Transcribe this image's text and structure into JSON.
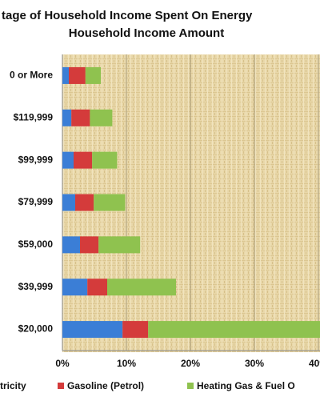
{
  "chart_data": {
    "type": "stacked-barh",
    "title": "tage of Household Income Spent On Energy",
    "subtitle": "Household Income Amount",
    "categories": [
      "0 or More",
      "$119,999",
      "$99,999",
      "$79,999",
      "$59,000",
      "$39,999",
      "$20,000"
    ],
    "series": [
      {
        "name": "tricity",
        "color": "#3b7ed6",
        "values": [
          1.0,
          1.4,
          1.75,
          2.0,
          2.75,
          3.9,
          9.4
        ]
      },
      {
        "name": "Gasoline (Petrol)",
        "color": "#d43b3b",
        "values": [
          2.6,
          2.9,
          2.9,
          2.9,
          2.9,
          3.1,
          4.0
        ]
      },
      {
        "name": "Heating Gas & Fuel O",
        "color": "#8fc24f",
        "values": [
          2.4,
          3.5,
          3.9,
          4.9,
          6.5,
          10.75,
          27
        ]
      }
    ],
    "xlim": [
      0,
      40
    ],
    "xticks": [
      {
        "value": 0,
        "label": "0%"
      },
      {
        "value": 10,
        "label": "10%"
      },
      {
        "value": 20,
        "label": "20%"
      },
      {
        "value": 30,
        "label": "30%"
      },
      {
        "value": 40,
        "label": "40%"
      }
    ],
    "grid": true
  }
}
